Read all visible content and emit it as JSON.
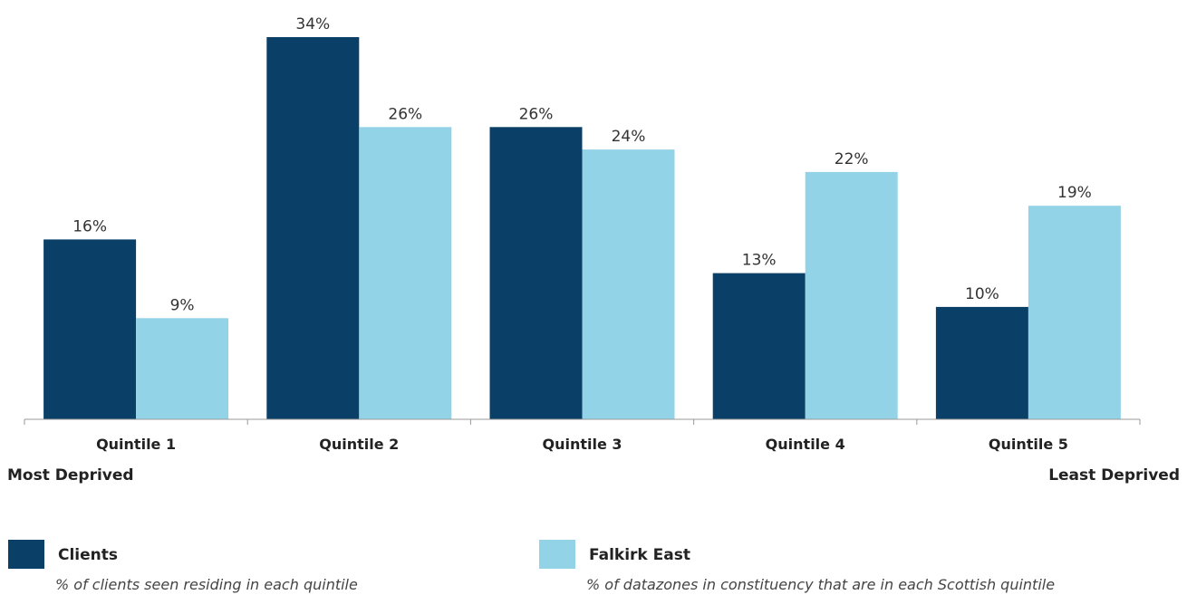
{
  "chart_data": {
    "type": "bar",
    "categories": [
      "Quintile 1",
      "Quintile 2",
      "Quintile 3",
      "Quintile 4",
      "Quintile 5"
    ],
    "series": [
      {
        "name": "Clients",
        "values": [
          16,
          34,
          26,
          13,
          10
        ],
        "labels": [
          "16%",
          "34%",
          "26%",
          "13%",
          "10%"
        ],
        "color": "#0a4068",
        "description": "% of clients seen residing in each quintile"
      },
      {
        "name": "Falkirk East",
        "values": [
          9,
          26,
          24,
          22,
          19
        ],
        "labels": [
          "9%",
          "26%",
          "24%",
          "22%",
          "19%"
        ],
        "color": "#93d3e8",
        "description": "% of datazones in constituency that are in each Scottish quintile"
      }
    ],
    "unit": "%",
    "ylim": [
      0,
      34
    ],
    "grid": false,
    "legend_position": "bottom",
    "axis_end_labels": {
      "left": "Most Deprived",
      "right": "Least Deprived"
    }
  }
}
